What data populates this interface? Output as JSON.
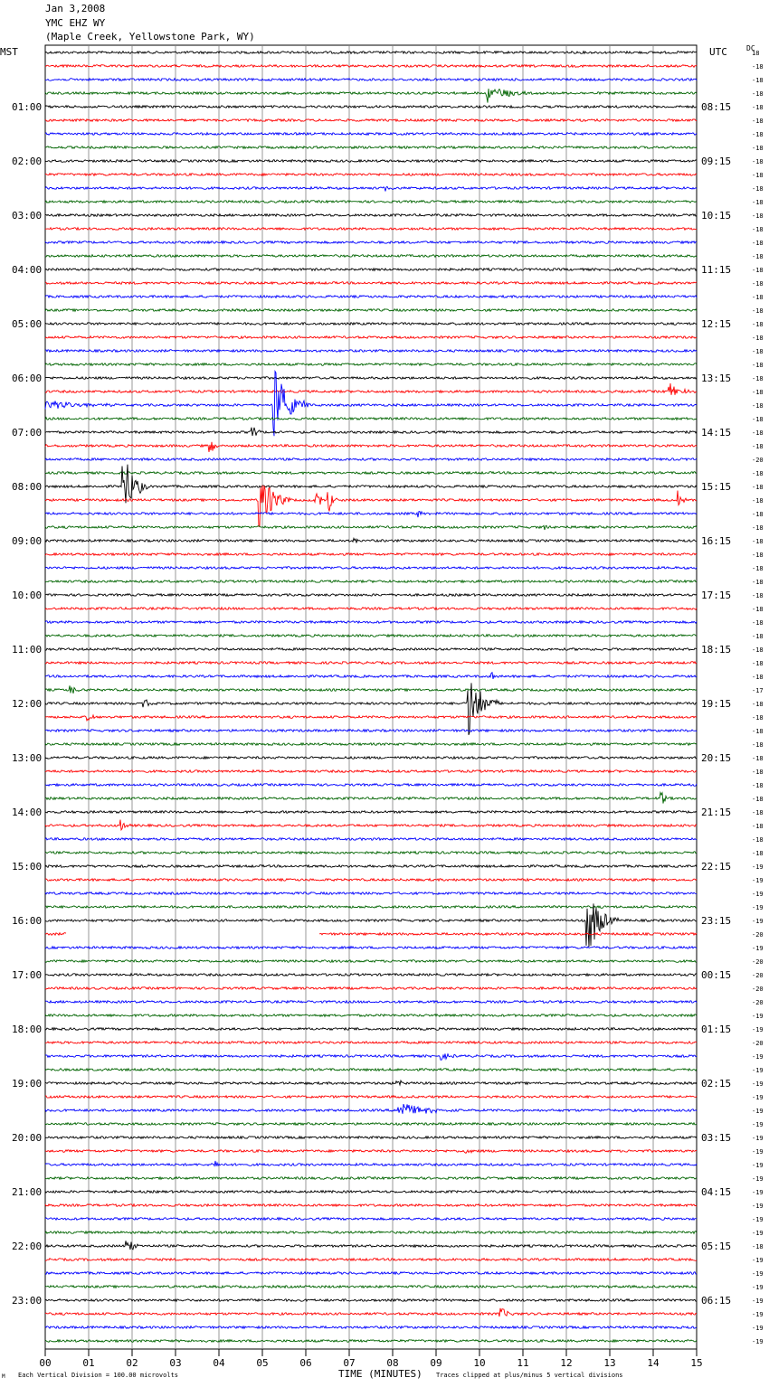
{
  "header": {
    "date": "Jan 3,2008",
    "station": "YMC EHZ WY",
    "location": "(Maple Creek, Yellowstone Park, WY)",
    "left_tz": "MST",
    "right_tz": "UTC",
    "dc_label": "DC"
  },
  "footer": {
    "scale_note": "Each Vertical Division =  100.00 microvolts",
    "xlabel": "TIME (MINUTES)",
    "clip_note": "Traces clipped at plus/minus 5 vertical divisions",
    "corner_mark": "M"
  },
  "colors": {
    "trace_cycle": [
      "#000000",
      "#ff0000",
      "#0000ff",
      "#006400"
    ],
    "grid": "#7f7f7f"
  },
  "chart_data": {
    "type": "line",
    "title": "",
    "xlabel": "TIME (MINUTES)",
    "xlim": [
      0,
      15
    ],
    "x_ticks": [
      "00",
      "01",
      "02",
      "03",
      "04",
      "05",
      "06",
      "07",
      "08",
      "09",
      "10",
      "11",
      "12",
      "13",
      "14",
      "15"
    ],
    "traces_per_hour": 4,
    "trace_count": 96,
    "grid": true,
    "left_hour_labels": [
      "01:00",
      "02:00",
      "03:00",
      "04:00",
      "05:00",
      "06:00",
      "07:00",
      "08:00",
      "09:00",
      "10:00",
      "11:00",
      "12:00",
      "13:00",
      "14:00",
      "15:00",
      "16:00",
      "17:00",
      "18:00",
      "19:00",
      "20:00",
      "21:00",
      "22:00",
      "23:00"
    ],
    "right_hour_labels": [
      "08:15",
      "09:15",
      "10:15",
      "11:15",
      "12:15",
      "13:15",
      "14:15",
      "15:15",
      "16:15",
      "17:15",
      "18:15",
      "19:15",
      "20:15",
      "21:15",
      "22:15",
      "23:15",
      "00:15",
      "01:15",
      "02:15",
      "03:15",
      "04:15",
      "05:15",
      "06:15"
    ],
    "dc_offsets": [
      "18",
      "-18",
      "-18",
      "-18",
      "-18",
      "-18",
      "-18",
      "-18",
      "-18",
      "-18",
      "-18",
      "-18",
      "-18",
      "-18",
      "-18",
      "-18",
      "-18",
      "-18",
      "-18",
      "-18",
      "-18",
      "-18",
      "-18",
      "-18",
      "-18",
      "-18",
      "-18",
      "-18",
      "-18",
      "-18",
      "-20",
      "-18",
      "-18",
      "-18",
      "-18",
      "-18",
      "-18",
      "-18",
      "-18",
      "-18",
      "-18",
      "-18",
      "-18",
      "-18",
      "-18",
      "-18",
      "-18",
      "-17",
      "-18",
      "-18",
      "-18",
      "-18",
      "-18",
      "-18",
      "-18",
      "-18",
      "-18",
      "-18",
      "-18",
      "-18",
      "-19",
      "-19",
      "-19",
      "-19",
      "-19",
      "-20",
      "-19",
      "-20",
      "-20",
      "-20",
      "-20",
      "-19",
      "-19",
      "-20",
      "-19",
      "-19",
      "-19",
      "-19",
      "-19",
      "-19",
      "-19",
      "-19",
      "-19",
      "-19",
      "-19",
      "-19",
      "-19",
      "-19",
      "-18",
      "-19",
      "-19",
      "-19",
      "-19",
      "-19",
      "-19",
      "-19"
    ],
    "events": [
      {
        "trace": 3,
        "minute": 10.2,
        "amp": 10,
        "dur": 1.0
      },
      {
        "trace": 10,
        "minute": 7.85,
        "amp": 4,
        "dur": 0.2
      },
      {
        "trace": 26,
        "minute": 5.3,
        "amp": 40,
        "dur": 0.8,
        "clip": true
      },
      {
        "trace": 26,
        "minute": 0.0,
        "amp": 5,
        "dur": 2.0
      },
      {
        "trace": 25,
        "minute": 14.4,
        "amp": 9,
        "dur": 0.6
      },
      {
        "trace": 28,
        "minute": 4.8,
        "amp": 7,
        "dur": 0.2
      },
      {
        "trace": 29,
        "minute": 3.8,
        "amp": 10,
        "dur": 0.3
      },
      {
        "trace": 32,
        "minute": 1.8,
        "amp": 40,
        "dur": 0.6,
        "clip": true
      },
      {
        "trace": 33,
        "minute": 4.95,
        "amp": 40,
        "dur": 0.7,
        "clip": true
      },
      {
        "trace": 33,
        "minute": 6.25,
        "amp": 12,
        "dur": 0.3
      },
      {
        "trace": 33,
        "minute": 6.55,
        "amp": 12,
        "dur": 0.3
      },
      {
        "trace": 33,
        "minute": 14.6,
        "amp": 10,
        "dur": 0.2
      },
      {
        "trace": 34,
        "minute": 8.6,
        "amp": 4,
        "dur": 0.2
      },
      {
        "trace": 35,
        "minute": 11.5,
        "amp": 3,
        "dur": 0.2
      },
      {
        "trace": 36,
        "minute": 7.15,
        "amp": 3,
        "dur": 0.2
      },
      {
        "trace": 47,
        "minute": 0.6,
        "amp": 5,
        "dur": 0.3
      },
      {
        "trace": 46,
        "minute": 10.3,
        "amp": 5,
        "dur": 0.2
      },
      {
        "trace": 48,
        "minute": 2.3,
        "amp": 5,
        "dur": 0.3
      },
      {
        "trace": 48,
        "minute": 9.75,
        "amp": 40,
        "dur": 0.7,
        "clip": true
      },
      {
        "trace": 49,
        "minute": 1.0,
        "amp": 4,
        "dur": 0.3
      },
      {
        "trace": 55,
        "minute": 14.2,
        "amp": 8,
        "dur": 0.2
      },
      {
        "trace": 57,
        "minute": 1.75,
        "amp": 6,
        "dur": 0.3
      },
      {
        "trace": 64,
        "minute": 12.5,
        "amp": 40,
        "dur": 0.7,
        "clip": true
      },
      {
        "trace": 74,
        "minute": 9.15,
        "amp": 5,
        "dur": 0.3
      },
      {
        "trace": 76,
        "minute": 8.1,
        "amp": 5,
        "dur": 0.3
      },
      {
        "trace": 78,
        "minute": 8.15,
        "amp": 10,
        "dur": 1.3
      },
      {
        "trace": 81,
        "minute": 9.7,
        "amp": 3,
        "dur": 0.2
      },
      {
        "trace": 82,
        "minute": 3.9,
        "amp": 6,
        "dur": 0.2
      },
      {
        "trace": 88,
        "minute": 1.9,
        "amp": 12,
        "dur": 0.3
      },
      {
        "trace": 93,
        "minute": 10.5,
        "amp": 8,
        "dur": 0.3
      }
    ],
    "gaps": [
      {
        "trace": 65,
        "from_minute": 0.5,
        "to_minute": 6.3
      }
    ]
  }
}
